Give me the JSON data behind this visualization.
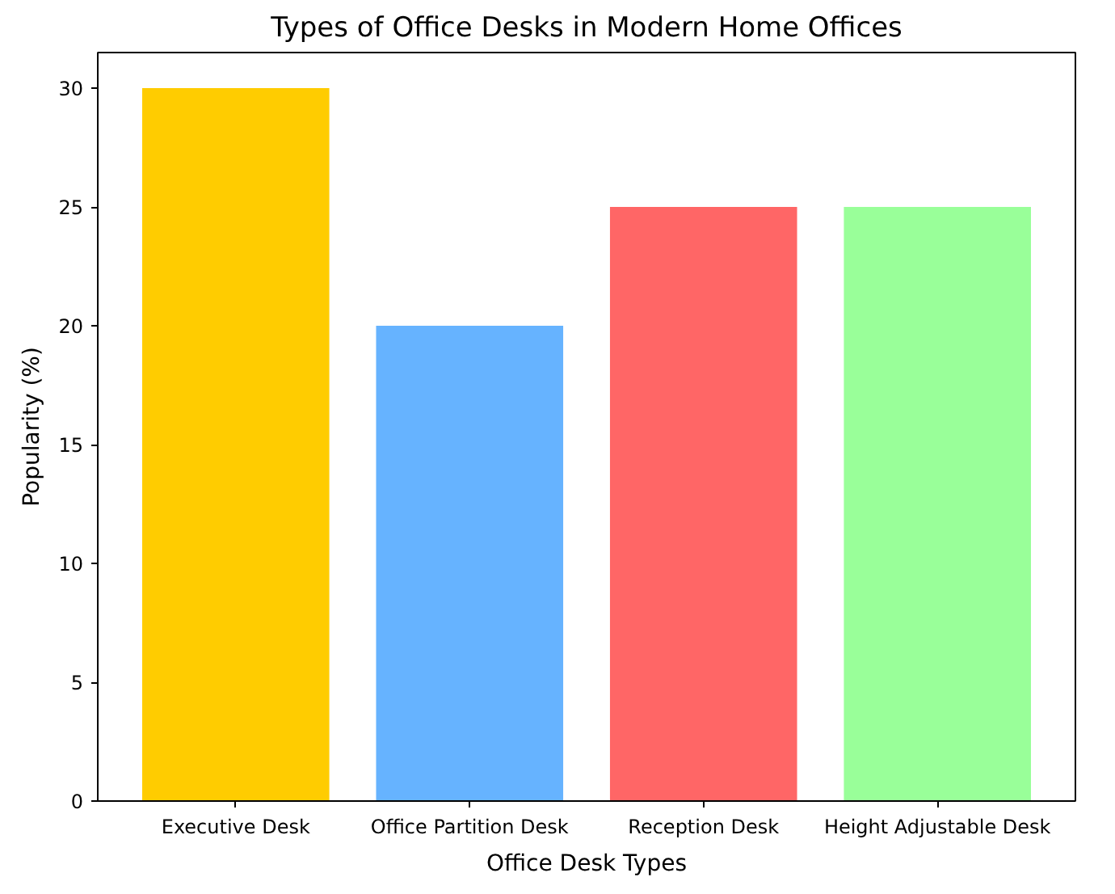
{
  "chart_data": {
    "type": "bar",
    "title": "Types of Office Desks in Modern Home Offices",
    "xlabel": "Office Desk Types",
    "ylabel": "Popularity (%)",
    "categories": [
      "Executive Desk",
      "Office Partition Desk",
      "Reception Desk",
      "Height Adjustable Desk"
    ],
    "values": [
      30,
      20,
      25,
      25
    ],
    "colors": [
      "#ffcc00",
      "#66b3ff",
      "#ff6666",
      "#99ff99"
    ],
    "ylim": [
      0,
      31.5
    ],
    "yticks": [
      0,
      5,
      10,
      15,
      20,
      25,
      30
    ],
    "grid": false
  }
}
